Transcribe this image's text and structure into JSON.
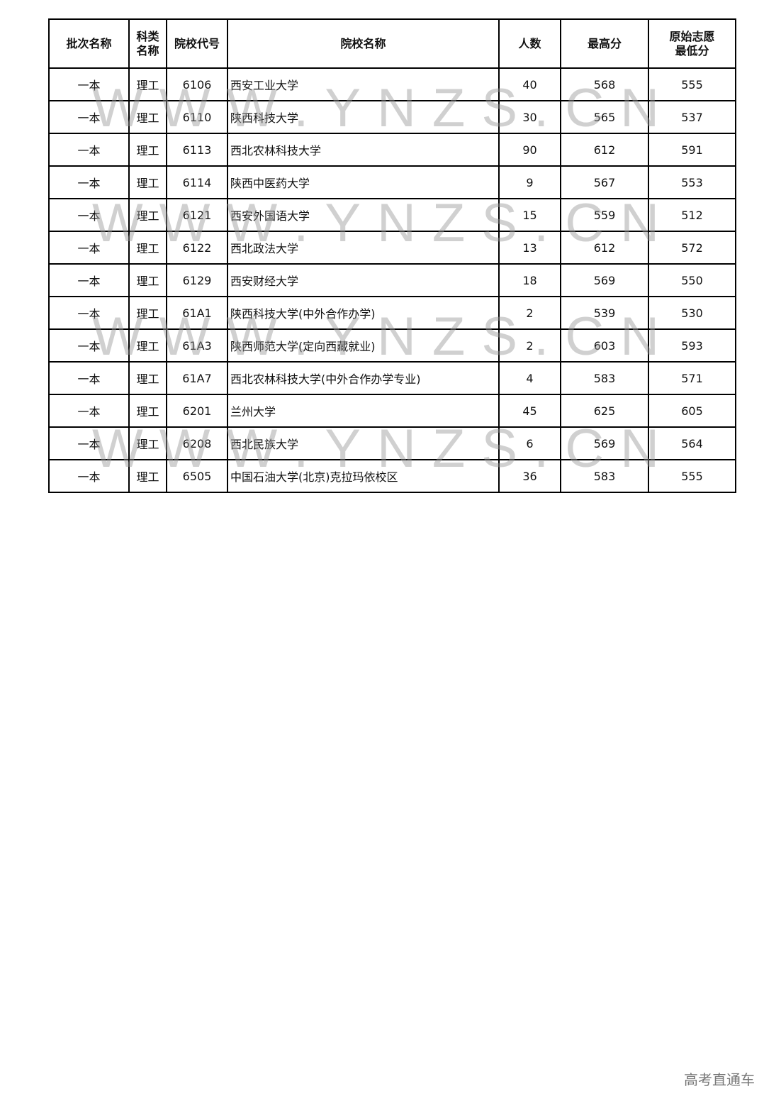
{
  "table": {
    "headers": [
      "批次名称",
      "科类名称",
      "院校代号",
      "院校名称",
      "人数",
      "最高分",
      "原始志愿最低分"
    ],
    "rows": [
      [
        "一本",
        "理工",
        "6106",
        "西安工业大学",
        "40",
        "568",
        "555"
      ],
      [
        "一本",
        "理工",
        "6110",
        "陕西科技大学",
        "30",
        "565",
        "537"
      ],
      [
        "一本",
        "理工",
        "6113",
        "西北农林科技大学",
        "90",
        "612",
        "591"
      ],
      [
        "一本",
        "理工",
        "6114",
        "陕西中医药大学",
        "9",
        "567",
        "553"
      ],
      [
        "一本",
        "理工",
        "6121",
        "西安外国语大学",
        "15",
        "559",
        "512"
      ],
      [
        "一本",
        "理工",
        "6122",
        "西北政法大学",
        "13",
        "612",
        "572"
      ],
      [
        "一本",
        "理工",
        "6129",
        "西安财经大学",
        "18",
        "569",
        "550"
      ],
      [
        "一本",
        "理工",
        "61A1",
        "陕西科技大学(中外合作办学)",
        "2",
        "539",
        "530"
      ],
      [
        "一本",
        "理工",
        "61A3",
        "陕西师范大学(定向西藏就业)",
        "2",
        "603",
        "593"
      ],
      [
        "一本",
        "理工",
        "61A7",
        "西北农林科技大学(中外合作办学专业)",
        "4",
        "583",
        "571"
      ],
      [
        "一本",
        "理工",
        "6201",
        "兰州大学",
        "45",
        "625",
        "605"
      ],
      [
        "一本",
        "理工",
        "6208",
        "西北民族大学",
        "6",
        "569",
        "564"
      ],
      [
        "一本",
        "理工",
        "6505",
        "中国石油大学(北京)克拉玛依校区",
        "36",
        "583",
        "555"
      ]
    ]
  },
  "watermark": "WWW.YNZS.CN",
  "footer": "高考直通车"
}
